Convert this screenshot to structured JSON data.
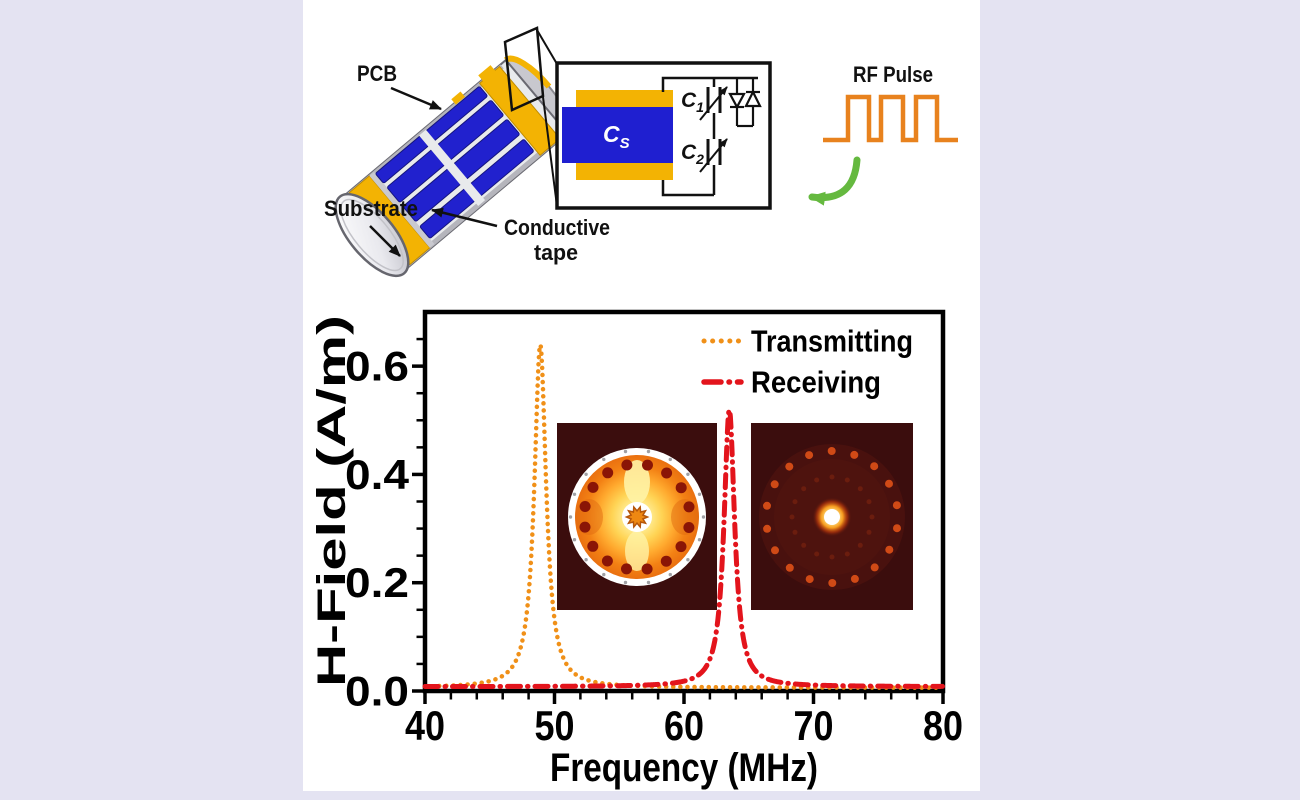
{
  "figure": {
    "type": "scientific-figure",
    "background_color": "#e4e3f2",
    "panel_color": "#ffffff"
  },
  "device_diagram": {
    "labels": {
      "pcb": "PCB",
      "substrate": "Substrate",
      "conductive_tape_line1": "Conductive",
      "conductive_tape_line2": "tape"
    },
    "colors": {
      "pcb_copper_blue": "#2121ce",
      "conductive_tape_yellow": "#f3b303",
      "substrate_gray": "#e8eaec"
    }
  },
  "circuit_inset": {
    "capacitors": {
      "cs": {
        "main": "C",
        "sub": "S"
      },
      "c1": {
        "main": "C",
        "sub": "1"
      },
      "c2": {
        "main": "C",
        "sub": "2"
      }
    },
    "diode_pair": "anti-parallel diode pair"
  },
  "rf_pulse": {
    "label": "RF Pulse",
    "color": "#e8821e",
    "arrow_color": "#65b93f"
  },
  "chart_data": {
    "type": "line",
    "title": "",
    "xlabel": "Frequency (MHz)",
    "ylabel": "H-Field (A/m)",
    "xlim": [
      40,
      80
    ],
    "ylim": [
      0,
      0.7
    ],
    "x_ticks": [
      40,
      50,
      60,
      70,
      80
    ],
    "y_ticks": [
      0.0,
      0.2,
      0.4,
      0.6
    ],
    "x_minor_tick_step_mhz": 2,
    "y_minor_tick_step": 0.05,
    "grid": false,
    "legend_position": "top-right",
    "series": [
      {
        "name": "Transmitting",
        "color": "#f09018",
        "line_style": "dotted",
        "peak_frequency_mhz": 48.9,
        "peak_h_field": 0.64,
        "fwhm_mhz": 1.1,
        "baseline_h_field": 0.006
      },
      {
        "name": "Receiving",
        "color": "#e3141c",
        "line_style": "dash-dot",
        "peak_frequency_mhz": 63.5,
        "peak_h_field": 0.52,
        "fwhm_mhz": 1.0,
        "baseline_h_field": 0.008
      }
    ],
    "insets": [
      {
        "name": "transmitting-field-map",
        "description": "Coil cross-section H-field map while transmitting: bright yellow-orange field with ring of rung hot spots"
      },
      {
        "name": "receiving-field-map",
        "description": "Coil cross-section H-field map while receiving (detuned): dark field, faint rung ring, small bright center"
      }
    ]
  }
}
